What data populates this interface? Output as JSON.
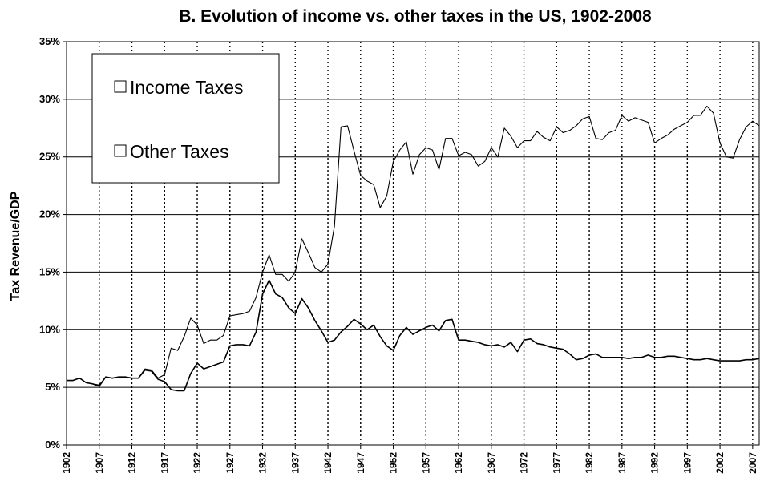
{
  "chart_data": {
    "type": "line",
    "title": "B. Evolution of income vs. other taxes in the US, 1902-2008",
    "xlabel": "",
    "ylabel": "Tax Revenue/GDP",
    "ylim": [
      0,
      35
    ],
    "y_ticks": [
      "0%",
      "5%",
      "10%",
      "15%",
      "20%",
      "25%",
      "30%",
      "35%"
    ],
    "x_ticks": [
      "1902",
      "1907",
      "1912",
      "1917",
      "1922",
      "1927",
      "1932",
      "1937",
      "1942",
      "1947",
      "1952",
      "1957",
      "1962",
      "1967",
      "1972",
      "1977",
      "1982",
      "1987",
      "1992",
      "1997",
      "2002",
      "2007"
    ],
    "xlim": [
      1902,
      2008
    ],
    "grid": "horizontal solid lines, vertical dotted lines every 5 years",
    "legend_position": "top-left",
    "legend": [
      "Income Taxes",
      "Other Taxes"
    ],
    "series": [
      {
        "name": "Income Taxes",
        "color": "#000000",
        "x": [
          1902,
          1903,
          1904,
          1905,
          1906,
          1907,
          1908,
          1909,
          1910,
          1911,
          1912,
          1913,
          1914,
          1915,
          1916,
          1917,
          1918,
          1919,
          1920,
          1921,
          1922,
          1923,
          1924,
          1925,
          1926,
          1927,
          1928,
          1929,
          1930,
          1931,
          1932,
          1933,
          1934,
          1935,
          1936,
          1937,
          1938,
          1939,
          1940,
          1941,
          1942,
          1943,
          1944,
          1945,
          1946,
          1947,
          1948,
          1949,
          1950,
          1951,
          1952,
          1953,
          1954,
          1955,
          1956,
          1957,
          1958,
          1959,
          1960,
          1961,
          1962,
          1963,
          1964,
          1965,
          1966,
          1967,
          1968,
          1969,
          1970,
          1971,
          1972,
          1973,
          1974,
          1975,
          1976,
          1977,
          1978,
          1979,
          1980,
          1981,
          1982,
          1983,
          1984,
          1985,
          1986,
          1987,
          1988,
          1989,
          1990,
          1991,
          1992,
          1993,
          1994,
          1995,
          1996,
          1997,
          1998,
          1999,
          2000,
          2001,
          2002,
          2003,
          2004,
          2005,
          2006,
          2007,
          2008
        ],
        "values": [
          5.6,
          5.6,
          5.8,
          5.4,
          5.3,
          5.2,
          5.9,
          5.8,
          5.9,
          5.9,
          5.8,
          5.8,
          6.6,
          6.5,
          5.8,
          6.1,
          8.4,
          8.2,
          9.4,
          11.0,
          10.4,
          8.8,
          9.1,
          9.1,
          9.5,
          11.2,
          11.3,
          11.4,
          11.6,
          12.8,
          15.0,
          16.5,
          14.8,
          14.8,
          14.2,
          15.0,
          17.9,
          16.7,
          15.4,
          15.0,
          15.7,
          19.0,
          27.6,
          27.7,
          25.5,
          23.4,
          22.9,
          22.6,
          20.6,
          21.6,
          24.6,
          25.6,
          26.3,
          23.5,
          25.2,
          25.8,
          25.6,
          23.9,
          26.6,
          26.6,
          25.1,
          25.4,
          25.2,
          24.2,
          24.6,
          25.8,
          25.0,
          27.5,
          26.8,
          25.8,
          26.4,
          26.4,
          27.2,
          26.7,
          26.4,
          27.6,
          27.1,
          27.3,
          27.7,
          28.3,
          28.5,
          26.6,
          26.5,
          27.1,
          27.3,
          28.6,
          28.1,
          28.4,
          28.2,
          28.0,
          26.2,
          26.6,
          26.9,
          27.4,
          27.7,
          28.0,
          28.6,
          28.6,
          29.4,
          28.8,
          26.2,
          25.0,
          24.9,
          26.5,
          27.6,
          28.1,
          27.7
        ]
      },
      {
        "name": "Other Taxes",
        "color": "#000000",
        "x": [
          1902,
          1903,
          1904,
          1905,
          1906,
          1907,
          1908,
          1909,
          1910,
          1911,
          1912,
          1913,
          1914,
          1915,
          1916,
          1917,
          1918,
          1919,
          1920,
          1921,
          1922,
          1923,
          1924,
          1925,
          1926,
          1927,
          1928,
          1929,
          1930,
          1931,
          1932,
          1933,
          1934,
          1935,
          1936,
          1937,
          1938,
          1939,
          1940,
          1941,
          1942,
          1943,
          1944,
          1945,
          1946,
          1947,
          1948,
          1949,
          1950,
          1951,
          1952,
          1953,
          1954,
          1955,
          1956,
          1957,
          1958,
          1959,
          1960,
          1961,
          1962,
          1963,
          1964,
          1965,
          1966,
          1967,
          1968,
          1969,
          1970,
          1971,
          1972,
          1973,
          1974,
          1975,
          1976,
          1977,
          1978,
          1979,
          1980,
          1981,
          1982,
          1983,
          1984,
          1985,
          1986,
          1987,
          1988,
          1989,
          1990,
          1991,
          1992,
          1993,
          1994,
          1995,
          1996,
          1997,
          1998,
          1999,
          2000,
          2001,
          2002,
          2003,
          2004,
          2005,
          2006,
          2007,
          2008
        ],
        "values": [
          5.6,
          5.6,
          5.8,
          5.4,
          5.3,
          5.1,
          5.9,
          5.8,
          5.9,
          5.9,
          5.8,
          5.8,
          6.5,
          6.4,
          5.7,
          5.5,
          4.8,
          4.7,
          4.7,
          6.2,
          7.1,
          6.6,
          6.8,
          7.0,
          7.2,
          8.6,
          8.7,
          8.7,
          8.6,
          9.8,
          13.1,
          14.3,
          13.1,
          12.8,
          11.9,
          11.4,
          12.7,
          11.9,
          10.8,
          9.9,
          8.9,
          9.1,
          9.8,
          10.3,
          10.9,
          10.5,
          10.0,
          10.4,
          9.4,
          8.6,
          8.2,
          9.5,
          10.2,
          9.6,
          9.9,
          10.2,
          10.4,
          9.9,
          10.8,
          10.9,
          9.1,
          9.1,
          9.0,
          8.9,
          8.7,
          8.6,
          8.7,
          8.5,
          8.9,
          8.1,
          9.1,
          9.2,
          8.8,
          8.7,
          8.5,
          8.4,
          8.3,
          7.9,
          7.4,
          7.5,
          7.8,
          7.9,
          7.6,
          7.6,
          7.6,
          7.6,
          7.5,
          7.6,
          7.6,
          7.8,
          7.6,
          7.6,
          7.7,
          7.7,
          7.6,
          7.5,
          7.4,
          7.4,
          7.5,
          7.4,
          7.3,
          7.3,
          7.3,
          7.3,
          7.4,
          7.4,
          7.5
        ]
      }
    ]
  }
}
